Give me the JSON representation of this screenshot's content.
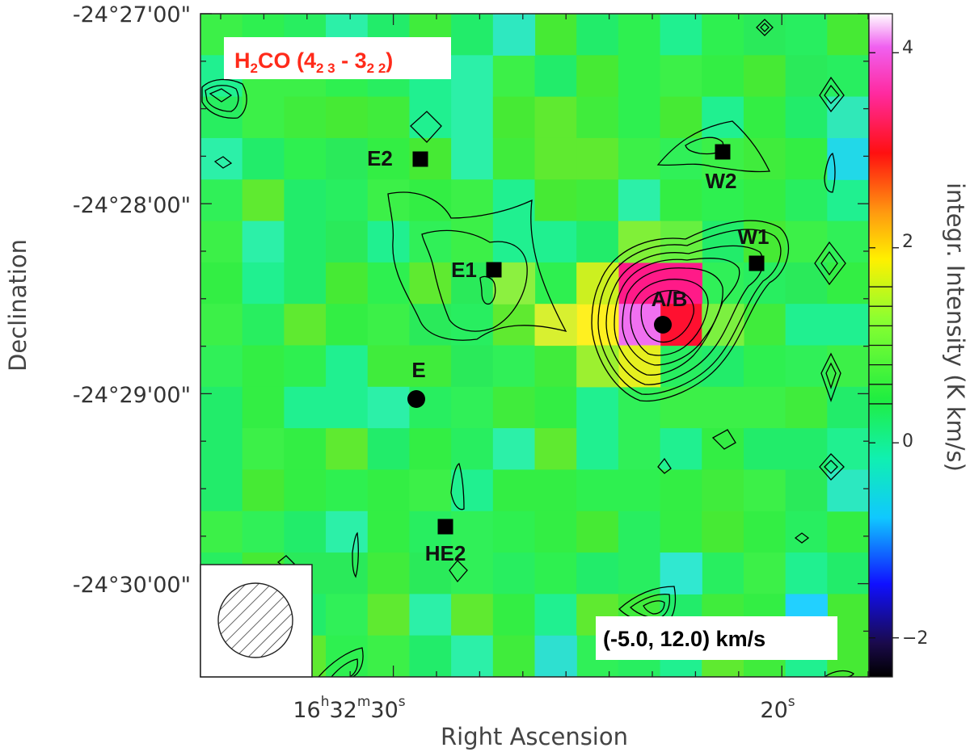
{
  "chart_data": {
    "type": "heatmap",
    "molecule": {
      "prefix": "H",
      "sub1": "2",
      "mid": "CO (4",
      "sub2": "2 3",
      "dash": " - 3",
      "sub3": "2 2",
      "close": ")"
    },
    "velocity_range": "(-5.0, 12.0) km/s",
    "xlabel": "Right Ascension",
    "ylabel": "Declination",
    "x_ticks": [
      {
        "h": "16",
        "hu": "h",
        "m": "32",
        "mu": "m",
        "s": "30",
        "su": "s"
      },
      {
        "h": "",
        "hu": "",
        "m": "",
        "mu": "",
        "s": "20",
        "su": "s"
      }
    ],
    "y_ticks": [
      "-24°27'00\"",
      "-24°28'00\"",
      "-24°29'00\"",
      "-24°30'00\""
    ],
    "colorbar": {
      "label": "integr. Intensity (K km/s)",
      "ticks": [
        "4",
        "2",
        "0",
        "−2"
      ],
      "tick_values": [
        4,
        2,
        0,
        -2
      ],
      "range": [
        -2.4,
        4.4
      ],
      "contour_levels": [
        0.4,
        0.6,
        0.8,
        1.0,
        1.2,
        1.4,
        1.6
      ]
    },
    "sources": [
      {
        "name": "E2",
        "marker": "square"
      },
      {
        "name": "W2",
        "marker": "square"
      },
      {
        "name": "W1",
        "marker": "square"
      },
      {
        "name": "E1",
        "marker": "square"
      },
      {
        "name": "A/B",
        "marker": "circle"
      },
      {
        "name": "E",
        "marker": "circle"
      },
      {
        "name": "HE2",
        "marker": "square"
      }
    ],
    "peak_intensity": 4.2,
    "colors": {
      "background_field": "#33ee44",
      "contour": "#000000",
      "molecule_label": "#ff2a1a"
    }
  }
}
